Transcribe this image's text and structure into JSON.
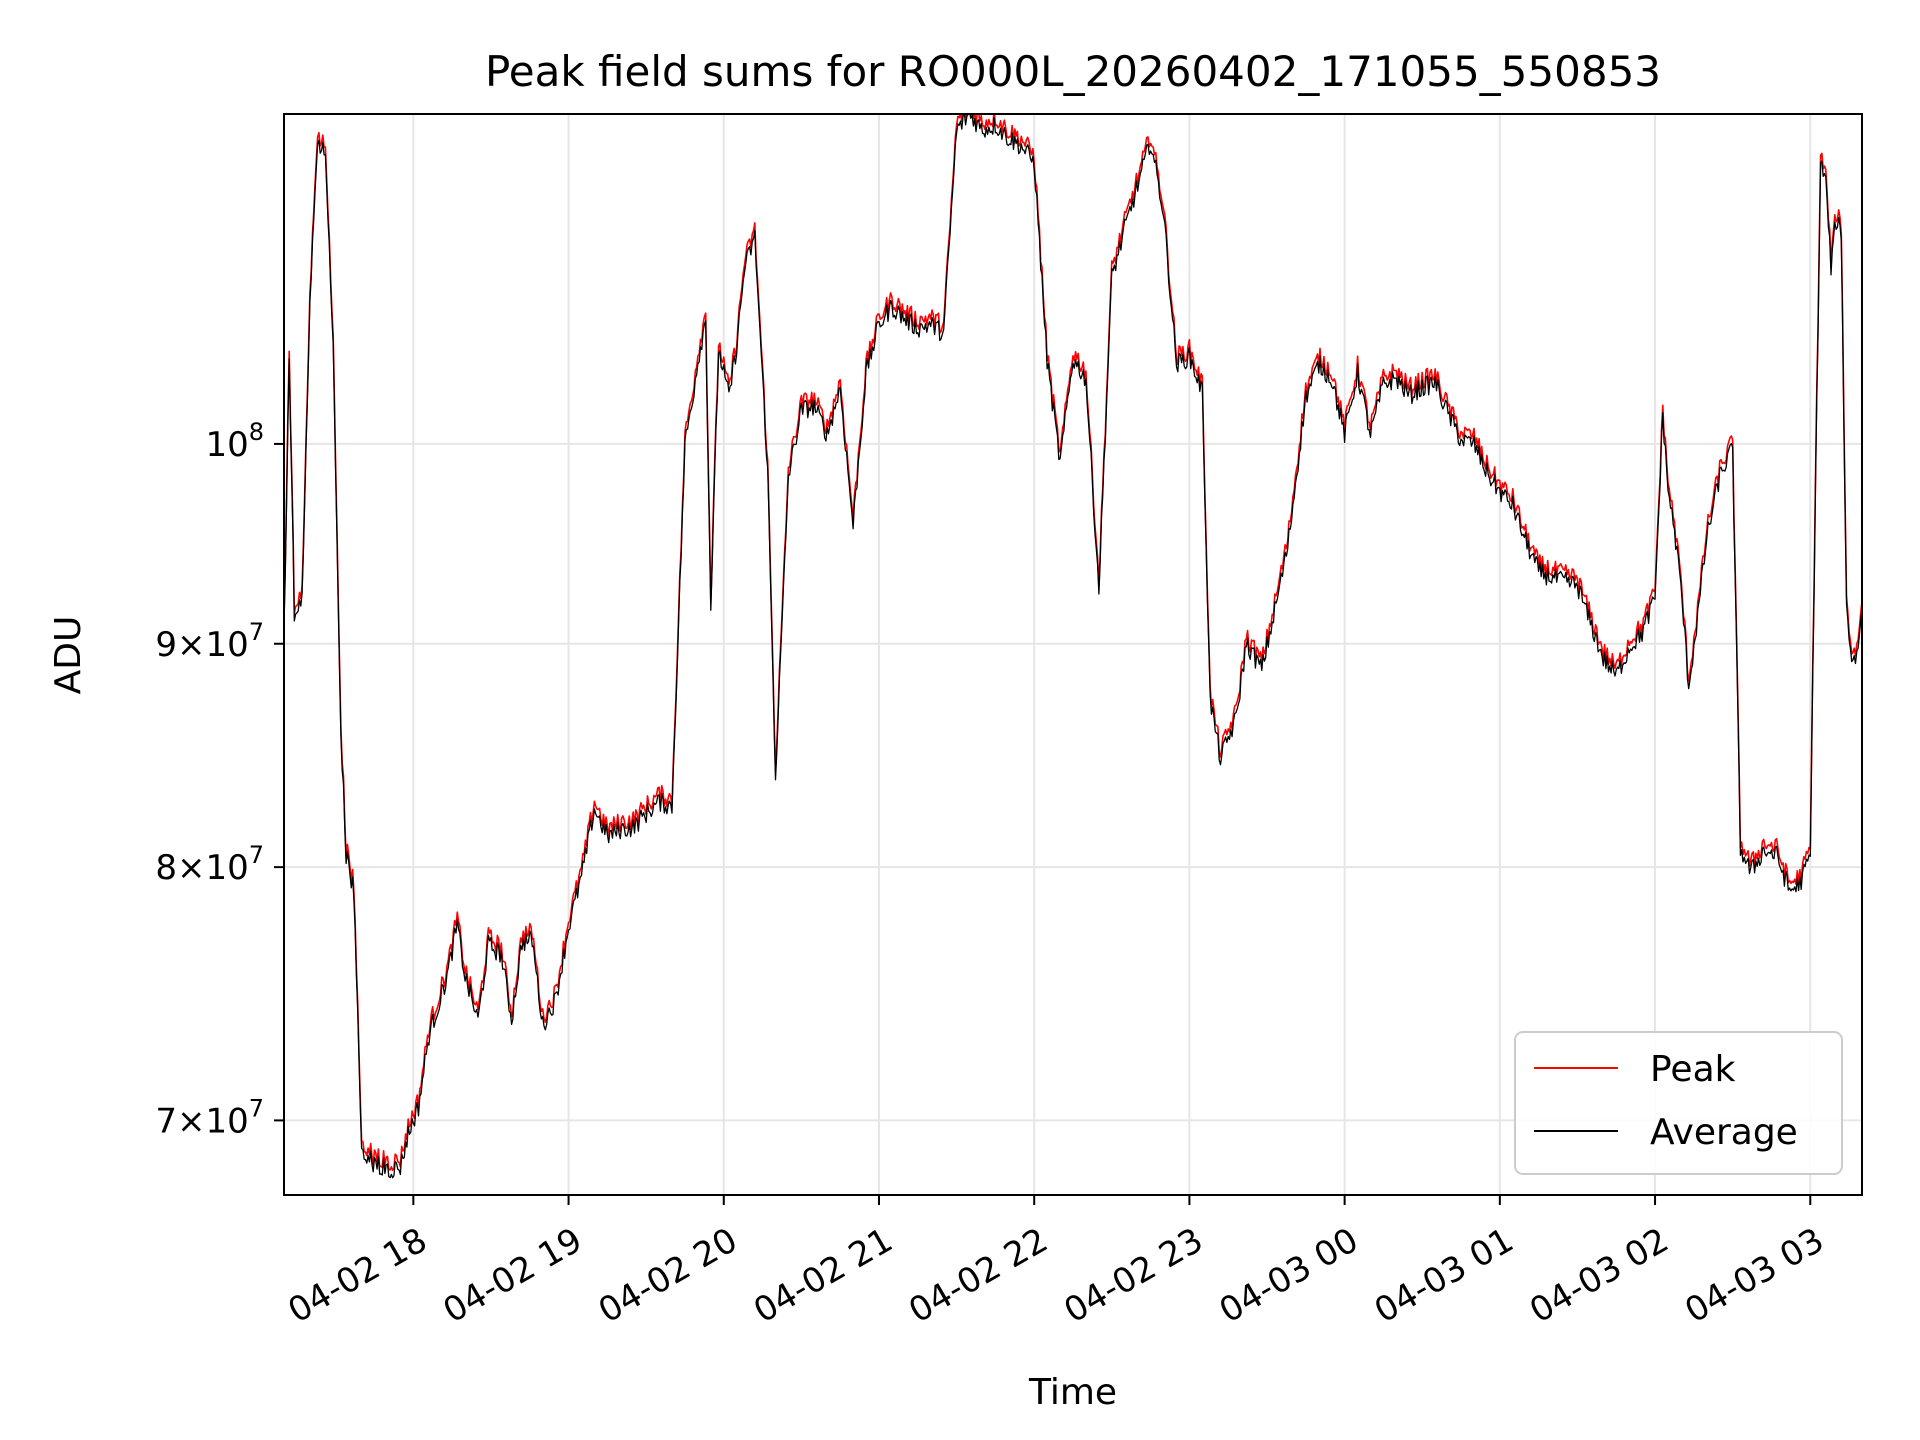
{
  "chart_data": {
    "type": "line",
    "title": "Peak field sums for RO000L_20260402_171055_550853",
    "xlabel": "Time",
    "ylabel": "ADU",
    "y_scale": "log",
    "grid": true,
    "legend_placement": "lower-right",
    "xlim": [
      "2026-04-02 17:10",
      "2026-04-03 03:20"
    ],
    "ylim": [
      67300000,
      119000000
    ],
    "x_ticks": [
      {
        "t": "2026-04-02 18:00",
        "label": "04-02 18"
      },
      {
        "t": "2026-04-02 19:00",
        "label": "04-02 19"
      },
      {
        "t": "2026-04-02 20:00",
        "label": "04-02 20"
      },
      {
        "t": "2026-04-02 21:00",
        "label": "04-02 21"
      },
      {
        "t": "2026-04-02 22:00",
        "label": "04-02 22"
      },
      {
        "t": "2026-04-02 23:00",
        "label": "04-02 23"
      },
      {
        "t": "2026-04-03 00:00",
        "label": "04-03 00"
      },
      {
        "t": "2026-04-03 01:00",
        "label": "04-03 01"
      },
      {
        "t": "2026-04-03 02:00",
        "label": "04-03 02"
      },
      {
        "t": "2026-04-03 03:00",
        "label": "04-03 03"
      }
    ],
    "y_ticks": [
      {
        "value": 70000000,
        "base": "7",
        "exp": "7"
      },
      {
        "value": 80000000,
        "base": "8",
        "exp": "7"
      },
      {
        "value": 90000000,
        "base": "9",
        "exp": "7"
      },
      {
        "value": 100000000,
        "base": "",
        "exp": "8"
      }
    ],
    "series": [
      {
        "name": "Peak",
        "color": "#ff0000",
        "offset_ratio": 1.004
      },
      {
        "name": "Average",
        "color": "#000000",
        "offset_ratio": 1.0
      }
    ],
    "x": [
      "2026-04-02 17:10",
      "2026-04-02 17:12",
      "2026-04-02 17:14",
      "2026-04-02 17:17",
      "2026-04-02 17:20",
      "2026-04-02 17:23",
      "2026-04-02 17:26",
      "2026-04-02 17:29",
      "2026-04-02 17:32",
      "2026-04-02 17:34",
      "2026-04-02 17:37",
      "2026-04-02 17:40",
      "2026-04-02 17:44",
      "2026-04-02 17:48",
      "2026-04-02 17:51",
      "2026-04-02 17:55",
      "2026-04-02 17:58",
      "2026-04-02 18:02",
      "2026-04-02 18:06",
      "2026-04-02 18:10",
      "2026-04-02 18:13",
      "2026-04-02 18:17",
      "2026-04-02 18:20",
      "2026-04-02 18:25",
      "2026-04-02 18:29",
      "2026-04-02 18:34",
      "2026-04-02 18:38",
      "2026-04-02 18:42",
      "2026-04-02 18:46",
      "2026-04-02 18:50",
      "2026-04-02 18:55",
      "2026-04-02 19:00",
      "2026-04-02 19:05",
      "2026-04-02 19:10",
      "2026-04-02 19:15",
      "2026-04-02 19:20",
      "2026-04-02 19:25",
      "2026-04-02 19:30",
      "2026-04-02 19:35",
      "2026-04-02 19:40",
      "2026-04-02 19:45",
      "2026-04-02 19:48",
      "2026-04-02 19:50",
      "2026-04-02 19:53",
      "2026-04-02 19:55",
      "2026-04-02 19:58",
      "2026-04-02 20:02",
      "2026-04-02 20:05",
      "2026-04-02 20:08",
      "2026-04-02 20:12",
      "2026-04-02 20:17",
      "2026-04-02 20:20",
      "2026-04-02 20:25",
      "2026-04-02 20:30",
      "2026-04-02 20:35",
      "2026-04-02 20:40",
      "2026-04-02 20:45",
      "2026-04-02 20:50",
      "2026-04-02 20:55",
      "2026-04-02 21:00",
      "2026-04-02 21:05",
      "2026-04-02 21:10",
      "2026-04-02 21:15",
      "2026-04-02 21:20",
      "2026-04-02 21:25",
      "2026-04-02 21:30",
      "2026-04-02 21:35",
      "2026-04-02 21:40",
      "2026-04-02 21:45",
      "2026-04-02 21:50",
      "2026-04-02 21:55",
      "2026-04-02 22:00",
      "2026-04-02 22:05",
      "2026-04-02 22:10",
      "2026-04-02 22:15",
      "2026-04-02 22:20",
      "2026-04-02 22:25",
      "2026-04-02 22:30",
      "2026-04-02 22:35",
      "2026-04-02 22:40",
      "2026-04-02 22:45",
      "2026-04-02 22:50",
      "2026-04-02 22:55",
      "2026-04-02 23:00",
      "2026-04-02 23:05",
      "2026-04-02 23:08",
      "2026-04-02 23:12",
      "2026-04-02 23:18",
      "2026-04-02 23:22",
      "2026-04-02 23:28",
      "2026-04-02 23:32",
      "2026-04-02 23:38",
      "2026-04-02 23:45",
      "2026-04-02 23:50",
      "2026-04-02 23:55",
      "2026-04-03 00:00",
      "2026-04-03 00:05",
      "2026-04-03 00:10",
      "2026-04-03 00:15",
      "2026-04-03 00:20",
      "2026-04-03 00:25",
      "2026-04-03 00:30",
      "2026-04-03 00:35",
      "2026-04-03 00:40",
      "2026-04-03 00:45",
      "2026-04-03 00:50",
      "2026-04-03 00:55",
      "2026-04-03 01:00",
      "2026-04-03 01:05",
      "2026-04-03 01:10",
      "2026-04-03 01:15",
      "2026-04-03 01:20",
      "2026-04-03 01:25",
      "2026-04-03 01:30",
      "2026-04-03 01:35",
      "2026-04-03 01:40",
      "2026-04-03 01:45",
      "2026-04-03 01:50",
      "2026-04-03 01:55",
      "2026-04-03 02:00",
      "2026-04-03 02:03",
      "2026-04-03 02:05",
      "2026-04-03 02:08",
      "2026-04-03 02:10",
      "2026-04-03 02:13",
      "2026-04-03 02:16",
      "2026-04-03 02:20",
      "2026-04-03 02:25",
      "2026-04-03 02:30",
      "2026-04-03 02:33",
      "2026-04-03 02:37",
      "2026-04-03 02:42",
      "2026-04-03 02:47",
      "2026-04-03 02:52",
      "2026-04-03 02:56",
      "2026-04-03 03:00",
      "2026-04-03 03:02",
      "2026-04-03 03:04",
      "2026-04-03 03:06",
      "2026-04-03 03:08",
      "2026-04-03 03:10",
      "2026-04-03 03:12",
      "2026-04-03 03:14",
      "2026-04-03 03:16",
      "2026-04-03 03:18",
      "2026-04-03 03:20"
    ],
    "values": [
      90500000,
      104500000,
      91500000,
      92000000,
      108000000,
      117500000,
      116500000,
      105000000,
      86000000,
      80500000,
      79000000,
      69000000,
      68500000,
      68300000,
      68200000,
      68300000,
      69500000,
      70500000,
      73200000,
      74500000,
      75500000,
      77600000,
      75500000,
      73800000,
      76800000,
      76400000,
      73800000,
      76900000,
      77000000,
      73600000,
      74600000,
      77500000,
      79600000,
      82500000,
      81300000,
      81600000,
      81700000,
      82300000,
      82800000,
      82600000,
      100000000,
      102500000,
      104500000,
      106800000,
      91800000,
      105100000,
      102500000,
      105300000,
      109700000,
      111500000,
      98500000,
      84000000,
      98300000,
      101800000,
      102000000,
      100500000,
      103000000,
      95800000,
      103800000,
      106500000,
      107500000,
      106800000,
      106300000,
      106500000,
      106000000,
      118000000,
      119000000,
      118000000,
      118300000,
      117500000,
      117000000,
      116000000,
      104500000,
      99000000,
      104600000,
      103500000,
      92700000,
      109200000,
      112000000,
      114600000,
      117300000,
      113000000,
      104300000,
      104700000,
      102800000,
      87400000,
      84700000,
      86500000,
      90000000,
      88800000,
      91000000,
      94700000,
      102500000,
      104300000,
      103500000,
      100500000,
      103800000,
      100500000,
      103200000,
      103500000,
      102600000,
      103000000,
      103300000,
      101600000,
      100200000,
      100000000,
      98500000,
      97500000,
      96800000,
      95000000,
      93500000,
      93200000,
      93000000,
      92800000,
      91000000,
      89300000,
      88500000,
      89800000,
      90500000,
      92200000,
      101500000,
      97700000,
      95000000,
      92800000,
      88000000,
      90800000,
      95200000,
      98300000,
      99800000,
      80800000,
      79800000,
      80700000,
      80500000,
      79000000,
      79300000,
      80500000,
      97500000,
      116000000,
      114800000,
      109800000,
      112500000,
      111800000,
      91700000,
      89300000,
      89400000,
      91700000
    ]
  }
}
